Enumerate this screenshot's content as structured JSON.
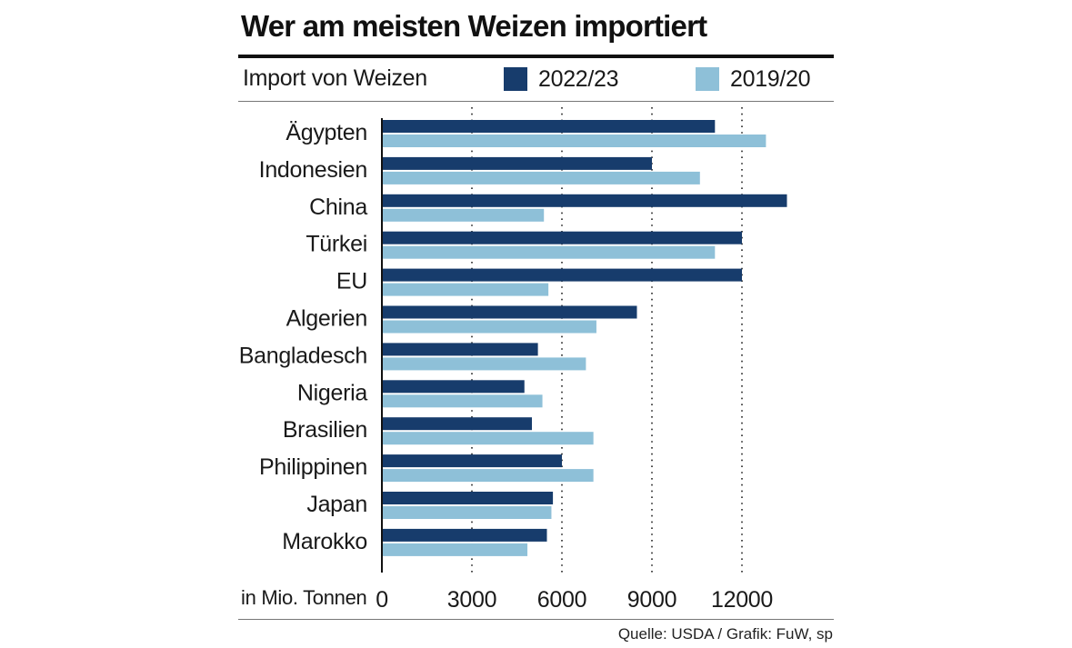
{
  "chart_data": {
    "type": "bar",
    "orientation": "horizontal",
    "title": "Wer am meisten Weizen importiert",
    "subtitle": "Import von Weizen",
    "xlabel": "in Mio. Tonnen",
    "ylabel": "",
    "source": "Quelle: USDA / Grafik: FuW, sp",
    "categories": [
      "Ägypten",
      "Indonesien",
      "China",
      "Türkei",
      "EU",
      "Algerien",
      "Bangladesch",
      "Nigeria",
      "Brasilien",
      "Philippinen",
      "Japan",
      "Marokko"
    ],
    "series": [
      {
        "name": "2022/23",
        "color": "#173c6c",
        "values": [
          11100,
          9000,
          13500,
          12000,
          12000,
          8500,
          5200,
          4750,
          5000,
          6000,
          5700,
          5500
        ]
      },
      {
        "name": "2019/20",
        "color": "#8ec0d8",
        "values": [
          12800,
          10600,
          5400,
          11100,
          5550,
          7150,
          6800,
          5350,
          7050,
          7050,
          5650,
          4850
        ]
      }
    ],
    "xlim": [
      0,
      15000
    ],
    "xticks": [
      0,
      3000,
      6000,
      9000,
      12000
    ],
    "xtick_labels": [
      "0",
      "3000",
      "6000",
      "9000",
      "12000"
    ],
    "grid": "dotted vertical at ticks",
    "legend": "top"
  }
}
